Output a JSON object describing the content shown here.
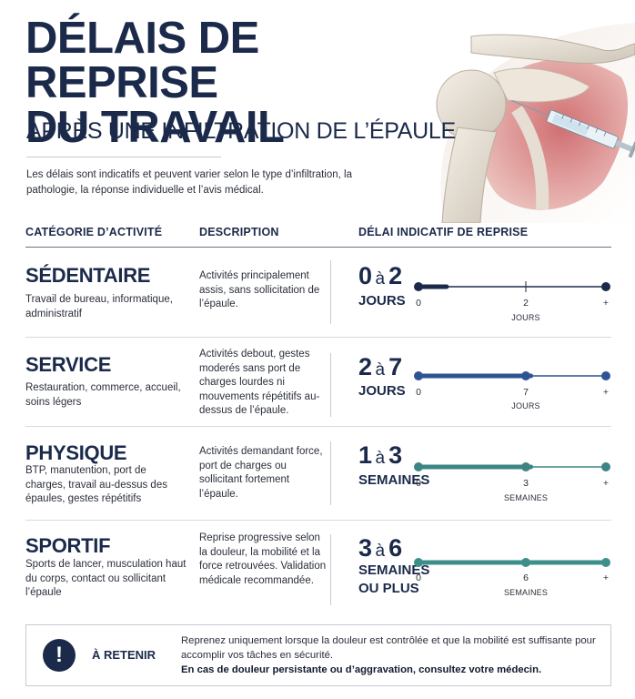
{
  "title_line1": "DÉLAIS DE REPRISE",
  "title_line2": "DU TRAVAIL",
  "subtitle": "APRÈS UNE INFILTRATION DE L’ÉPAULE",
  "intro": "Les délais sont indicatifs et peuvent varier selon le type d’infiltration, la pathologie, la réponse individuelle et l’avis médical.",
  "headers": {
    "category": "CATÉGORIE D’ACTIVITÉ",
    "description": "DESCRIPTION",
    "delay": "DÉLAI INDICATIF DE REPRISE"
  },
  "rows": [
    {
      "name": "SÉDENTAIRE",
      "examples": "Travail de bureau, informatique, administratif",
      "description": "Activités principalement assis, sans sollicitation de l’épaule.",
      "from": "0",
      "sep": "à",
      "to": "2",
      "unit_line1": "JOURS",
      "unit_line2": "",
      "scale_start": "0",
      "scale_mid": "2",
      "scale_end": "+",
      "scale_unit": "JOURS",
      "color": "#1b2a4a"
    },
    {
      "name": "SERVICE",
      "examples": "Restauration, commerce, accueil, soins légers",
      "description": "Activités debout, gestes moderés sans port de charges lourdes ni mouvements répétitifs au-dessus de l’épaule.",
      "from": "2",
      "sep": "à",
      "to": "7",
      "unit_line1": "JOURS",
      "unit_line2": "",
      "scale_start": "0",
      "scale_mid": "7",
      "scale_end": "+",
      "scale_unit": "JOURS",
      "color": "#2d5594"
    },
    {
      "name": "PHYSIQUE",
      "examples": "BTP, manutention, port de charges, travail au-dessus des épaules, gestes répétitifs",
      "description": "Activités demandant force, port de charges ou sollicitant fortement l’épaule.",
      "from": "1",
      "sep": "à",
      "to": "3",
      "unit_line1": "SEMAINES",
      "unit_line2": "",
      "scale_start": "0",
      "scale_mid": "3",
      "scale_end": "+",
      "scale_unit": "SEMAINES",
      "color": "#3d8585"
    },
    {
      "name": "SPORTIF",
      "examples": "Sports de lancer, musculation haut du corps, contact ou sollicitant l’épaule",
      "description": "Reprise progressive selon la douleur, la mobilité et la force retrouvées. Validation médicale recommandée.",
      "from": "3",
      "sep": "à",
      "to": "6",
      "unit_line1": "SEMAINES",
      "unit_line2": "OU PLUS",
      "scale_start": "0",
      "scale_mid": "6",
      "scale_end": "+",
      "scale_unit": "SEMAINES",
      "color": "#3d8f8c"
    }
  ],
  "callout": {
    "icon": "!",
    "label": "À RETENIR",
    "text": "Reprenez uniquement lorsque la douleur est contrôlée et que la mobilité est suffisante pour accomplir vos tâches en sécurité.",
    "bold": "En cas de douleur persistante ou d’aggravation, consultez votre médecin."
  },
  "icons": {
    "hero": "shoulder-injection-illustration",
    "callout": "exclamation-icon"
  }
}
